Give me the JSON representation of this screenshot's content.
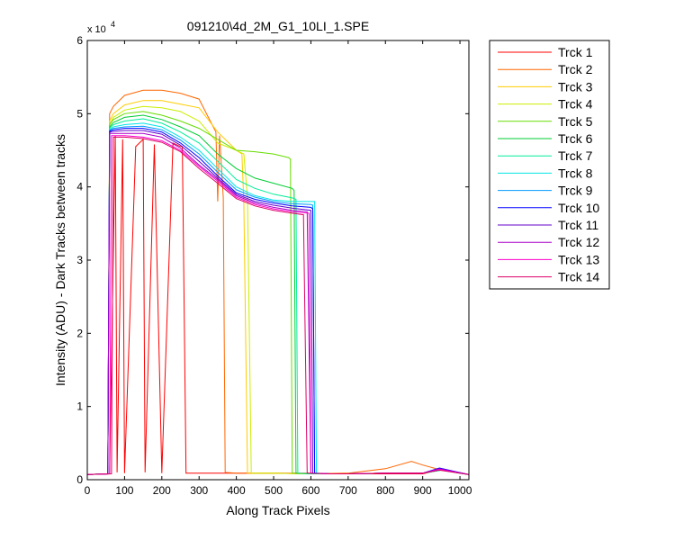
{
  "chart_data": {
    "type": "line",
    "title": "091210\\4d_2M_G1_10LI_1.SPE",
    "xlabel": "Along Track Pixels",
    "ylabel": "Intensity (ADU) - Dark Tracks between tracks",
    "xlim": [
      0,
      1024
    ],
    "ylim": [
      0,
      60000
    ],
    "y_exponent_label": "x 10",
    "y_exponent_power": "4",
    "x_ticks": [
      0,
      100,
      200,
      300,
      400,
      500,
      600,
      700,
      800,
      900,
      1000
    ],
    "y_ticks": [
      0,
      1,
      2,
      3,
      4,
      5,
      6
    ],
    "y_tick_multiplier": 10000,
    "grid": false,
    "legend_position": "outside-right",
    "series": [
      {
        "name": "Trck 1",
        "color": "#ff0000",
        "x": [
          0,
          60,
          75,
          80,
          95,
          100,
          130,
          150,
          155,
          180,
          200,
          230,
          250,
          255,
          265,
          300,
          400,
          500,
          600,
          700,
          800,
          900,
          950,
          1024
        ],
        "y": [
          700,
          800,
          47000,
          1000,
          46500,
          900,
          45500,
          46500,
          1000,
          45800,
          900,
          46000,
          45500,
          45500,
          900,
          900,
          900,
          900,
          900,
          800,
          800,
          800,
          1400,
          700
        ]
      },
      {
        "name": "Trck 2",
        "color": "#ff6600",
        "x": [
          0,
          55,
          60,
          70,
          100,
          150,
          200,
          250,
          300,
          330,
          345,
          350,
          355,
          365,
          370,
          400,
          500,
          600,
          700,
          800,
          870,
          900,
          950,
          1024
        ],
        "y": [
          700,
          800,
          50000,
          51000,
          52500,
          53200,
          53200,
          52800,
          52000,
          49000,
          47500,
          38000,
          47000,
          38500,
          1000,
          900,
          900,
          800,
          900,
          1500,
          2500,
          2000,
          1300,
          700
        ]
      },
      {
        "name": "Trck 3",
        "color": "#ffcc00",
        "x": [
          0,
          55,
          60,
          70,
          100,
          150,
          200,
          250,
          300,
          350,
          380,
          400,
          415,
          420,
          430,
          500,
          600,
          700,
          800,
          900,
          950,
          1024
        ],
        "y": [
          700,
          800,
          49000,
          50000,
          51200,
          51800,
          51800,
          51300,
          50800,
          47500,
          46000,
          45000,
          44500,
          38000,
          900,
          900,
          800,
          800,
          900,
          900,
          1300,
          700
        ]
      },
      {
        "name": "Trck 4",
        "color": "#ccee00",
        "x": [
          0,
          55,
          60,
          70,
          100,
          150,
          200,
          250,
          300,
          350,
          400,
          420,
          430,
          440,
          500,
          600,
          700,
          800,
          900,
          950,
          1024
        ],
        "y": [
          700,
          800,
          48500,
          49500,
          50500,
          51000,
          50800,
          50300,
          49000,
          46000,
          45000,
          44500,
          38500,
          900,
          900,
          800,
          800,
          900,
          900,
          1300,
          700
        ]
      },
      {
        "name": "Trck 5",
        "color": "#66dd00",
        "x": [
          0,
          55,
          60,
          70,
          100,
          150,
          200,
          250,
          300,
          350,
          400,
          450,
          500,
          540,
          545,
          550,
          600,
          700,
          800,
          900,
          950,
          1024
        ],
        "y": [
          700,
          800,
          48500,
          49200,
          50000,
          50300,
          49800,
          49000,
          48000,
          46500,
          45000,
          44800,
          44500,
          44000,
          43800,
          900,
          800,
          800,
          900,
          900,
          1300,
          700
        ]
      },
      {
        "name": "Trck 6",
        "color": "#00cc33",
        "x": [
          0,
          55,
          60,
          70,
          100,
          150,
          200,
          250,
          300,
          350,
          400,
          450,
          500,
          550,
          555,
          560,
          600,
          700,
          800,
          900,
          950,
          1024
        ],
        "y": [
          700,
          800,
          48200,
          48800,
          49500,
          49800,
          49200,
          48200,
          47000,
          44500,
          42500,
          41200,
          40500,
          39800,
          39500,
          900,
          800,
          800,
          900,
          900,
          1300,
          700
        ]
      },
      {
        "name": "Trck 7",
        "color": "#00ee99",
        "x": [
          0,
          55,
          60,
          70,
          100,
          150,
          200,
          250,
          300,
          350,
          400,
          450,
          500,
          550,
          560,
          565,
          600,
          700,
          800,
          900,
          950,
          1024
        ],
        "y": [
          700,
          800,
          48000,
          48500,
          49000,
          49300,
          48700,
          47500,
          46000,
          43500,
          41000,
          39800,
          39000,
          38500,
          38300,
          900,
          800,
          800,
          900,
          900,
          1300,
          700
        ]
      },
      {
        "name": "Trck 8",
        "color": "#00e5e5",
        "x": [
          0,
          55,
          60,
          70,
          100,
          150,
          200,
          250,
          300,
          350,
          400,
          450,
          500,
          550,
          600,
          610,
          615,
          650,
          700,
          800,
          900,
          950,
          1024
        ],
        "y": [
          700,
          800,
          47800,
          48200,
          48500,
          48700,
          48200,
          46800,
          45000,
          42500,
          40000,
          38800,
          38200,
          38000,
          38000,
          38000,
          900,
          800,
          800,
          900,
          900,
          1300,
          700
        ]
      },
      {
        "name": "Trck 9",
        "color": "#0099ff",
        "x": [
          0,
          55,
          60,
          70,
          100,
          150,
          200,
          250,
          300,
          350,
          400,
          450,
          500,
          550,
          600,
          605,
          610,
          650,
          700,
          800,
          900,
          950,
          1024
        ],
        "y": [
          700,
          800,
          47700,
          48000,
          48200,
          48300,
          47800,
          46400,
          44500,
          42000,
          39600,
          38600,
          38000,
          37700,
          37600,
          37500,
          900,
          800,
          800,
          900,
          900,
          1400,
          700
        ]
      },
      {
        "name": "Trck 10",
        "color": "#0000ff",
        "x": [
          0,
          55,
          60,
          70,
          100,
          150,
          200,
          250,
          300,
          350,
          400,
          450,
          500,
          550,
          600,
          605,
          610,
          650,
          700,
          800,
          900,
          945,
          1024
        ],
        "y": [
          700,
          800,
          47600,
          47800,
          48000,
          48000,
          47500,
          46000,
          44000,
          41500,
          39200,
          38300,
          37800,
          37400,
          37200,
          37000,
          900,
          800,
          800,
          900,
          900,
          1600,
          700
        ]
      },
      {
        "name": "Trck 11",
        "color": "#6600cc",
        "x": [
          0,
          55,
          60,
          70,
          100,
          150,
          200,
          250,
          300,
          350,
          400,
          450,
          500,
          550,
          600,
          605,
          650,
          700,
          800,
          900,
          945,
          1024
        ],
        "y": [
          700,
          800,
          47500,
          47600,
          47700,
          47700,
          47200,
          45700,
          43500,
          41200,
          39000,
          38000,
          37500,
          37100,
          36800,
          900,
          800,
          800,
          900,
          900,
          1400,
          700
        ]
      },
      {
        "name": "Trck 12",
        "color": "#aa00cc",
        "x": [
          0,
          55,
          60,
          70,
          100,
          150,
          200,
          250,
          300,
          350,
          400,
          450,
          500,
          550,
          590,
          600,
          650,
          700,
          800,
          900,
          945,
          1024
        ],
        "y": [
          700,
          800,
          47300,
          47300,
          47300,
          47300,
          46800,
          45300,
          43000,
          41000,
          38800,
          37800,
          37200,
          36800,
          36600,
          900,
          800,
          800,
          900,
          900,
          1500,
          700
        ]
      },
      {
        "name": "Trck 13",
        "color": "#ff00cc",
        "x": [
          0,
          60,
          65,
          70,
          100,
          150,
          200,
          250,
          300,
          350,
          400,
          450,
          500,
          550,
          595,
          600,
          650,
          700,
          800,
          900,
          945,
          1024
        ],
        "y": [
          700,
          800,
          47000,
          47000,
          47000,
          46800,
          46300,
          45000,
          42800,
          40800,
          38600,
          37600,
          37000,
          36600,
          36400,
          900,
          800,
          800,
          900,
          900,
          1400,
          700
        ]
      },
      {
        "name": "Trck 14",
        "color": "#dd0066",
        "x": [
          0,
          65,
          70,
          80,
          100,
          150,
          200,
          250,
          300,
          350,
          400,
          450,
          500,
          550,
          580,
          590,
          650,
          700,
          800,
          900,
          945,
          1024
        ],
        "y": [
          700,
          800,
          46800,
          46800,
          46800,
          46600,
          46100,
          44800,
          42500,
          40500,
          38400,
          37400,
          36800,
          36400,
          36200,
          900,
          800,
          800,
          900,
          900,
          1300,
          700
        ]
      }
    ]
  }
}
